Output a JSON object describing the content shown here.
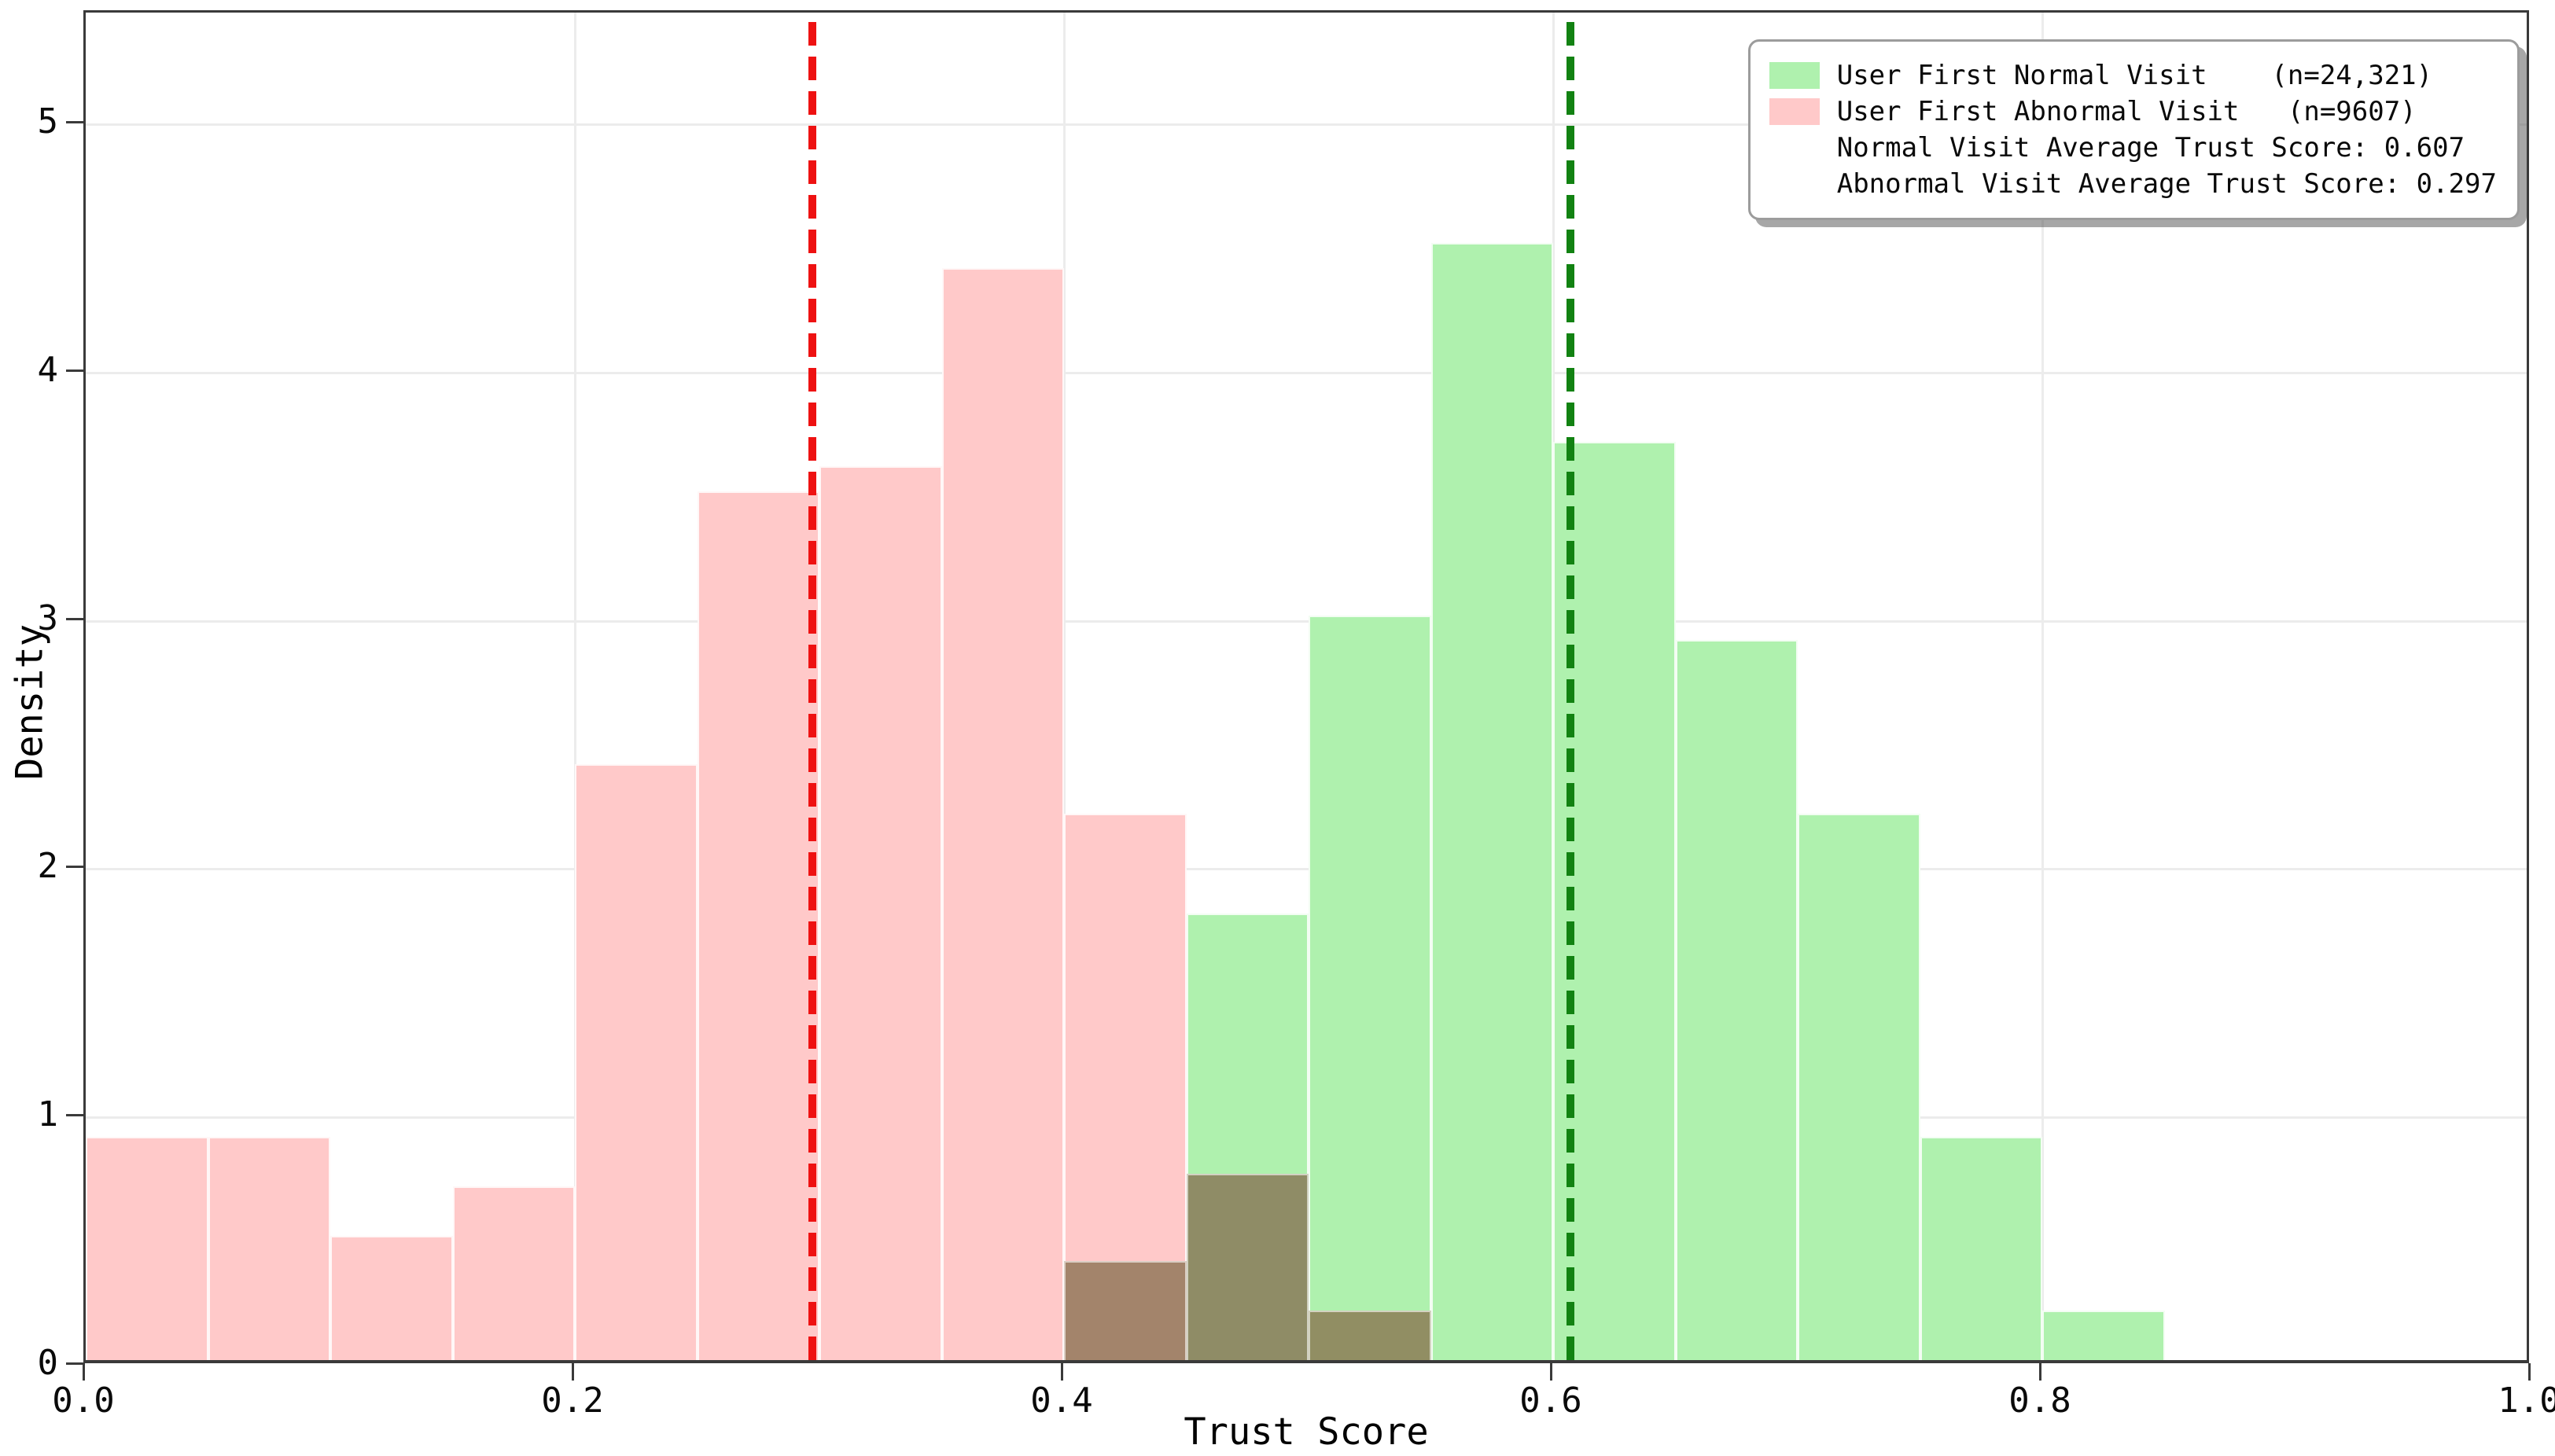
{
  "figure": {
    "xlabel": "Trust Score",
    "ylabel": "Density"
  },
  "axes": {
    "x_ticks": [
      {
        "value": 0.0,
        "label": "0.0"
      },
      {
        "value": 0.2,
        "label": "0.2"
      },
      {
        "value": 0.4,
        "label": "0.4"
      },
      {
        "value": 0.6,
        "label": "0.6"
      },
      {
        "value": 0.8,
        "label": "0.8"
      },
      {
        "value": 1.0,
        "label": "1.0"
      }
    ],
    "y_ticks": [
      {
        "value": 0,
        "label": "0"
      },
      {
        "value": 1,
        "label": "1"
      },
      {
        "value": 2,
        "label": "2"
      },
      {
        "value": 3,
        "label": "3"
      },
      {
        "value": 4,
        "label": "4"
      },
      {
        "value": 5,
        "label": "5"
      }
    ]
  },
  "legend": {
    "items": [
      {
        "type": "patch",
        "color": "#AFF1AE",
        "label": "User First Normal Visit    (n=24,321)"
      },
      {
        "type": "patch",
        "color": "#FFC9C9",
        "label": "User First Abnormal Visit   (n=9607)"
      },
      {
        "type": "dash",
        "color": "#0C830C",
        "label": "Normal Visit Average Trust Score: 0.607"
      },
      {
        "type": "dash",
        "color": "#EE1212",
        "label": "Abnormal Visit Average Trust Score: 0.297"
      }
    ]
  },
  "chart_data": {
    "type": "bar",
    "subtype": "overlapping-density-histogram",
    "title": "",
    "xlabel": "Trust Score",
    "ylabel": "Density",
    "xlim": [
      0.0,
      1.0
    ],
    "ylim": [
      0,
      5.45
    ],
    "bin_width": 0.05,
    "grid": {
      "x_gridlines": [
        0.2,
        0.4,
        0.6,
        0.8
      ],
      "y_gridlines": [
        1,
        2,
        3,
        4,
        5
      ]
    },
    "legend_position": "upper right",
    "series": [
      {
        "name": "User First Abnormal Visit",
        "n_label": "n=9607",
        "color": "#FFC9C9",
        "bin_start": 0.0,
        "bins": [
          {
            "x0": 0.0,
            "x1": 0.05,
            "density": 0.9
          },
          {
            "x0": 0.05,
            "x1": 0.1,
            "density": 0.9
          },
          {
            "x0": 0.1,
            "x1": 0.15,
            "density": 0.5
          },
          {
            "x0": 0.15,
            "x1": 0.2,
            "density": 0.7
          },
          {
            "x0": 0.2,
            "x1": 0.25,
            "density": 2.4
          },
          {
            "x0": 0.25,
            "x1": 0.3,
            "density": 3.5
          },
          {
            "x0": 0.3,
            "x1": 0.35,
            "density": 3.6
          },
          {
            "x0": 0.35,
            "x1": 0.4,
            "density": 4.4
          },
          {
            "x0": 0.4,
            "x1": 0.45,
            "density": 2.2
          },
          {
            "x0": 0.45,
            "x1": 0.5,
            "density": 0.75
          },
          {
            "x0": 0.5,
            "x1": 0.55,
            "density": 0.2
          }
        ]
      },
      {
        "name": "User First Normal Visit",
        "n_label": "n=24,321",
        "color": "#AFF1AE",
        "bin_start": 0.4,
        "bins": [
          {
            "x0": 0.4,
            "x1": 0.45,
            "density": 0.4
          },
          {
            "x0": 0.45,
            "x1": 0.5,
            "density": 1.8
          },
          {
            "x0": 0.5,
            "x1": 0.55,
            "density": 3.0
          },
          {
            "x0": 0.55,
            "x1": 0.6,
            "density": 4.5
          },
          {
            "x0": 0.6,
            "x1": 0.65,
            "density": 3.7
          },
          {
            "x0": 0.65,
            "x1": 0.7,
            "density": 2.9
          },
          {
            "x0": 0.7,
            "x1": 0.75,
            "density": 2.2
          },
          {
            "x0": 0.75,
            "x1": 0.8,
            "density": 0.9
          },
          {
            "x0": 0.8,
            "x1": 0.85,
            "density": 0.2
          }
        ]
      }
    ],
    "overlap_bins": [
      {
        "x0": 0.4,
        "x1": 0.45,
        "density": 0.4,
        "color": "#A3846B"
      },
      {
        "x0": 0.45,
        "x1": 0.5,
        "density": 0.75,
        "color": "#8F8C66"
      },
      {
        "x0": 0.5,
        "x1": 0.55,
        "density": 0.2,
        "color": "#918E63"
      }
    ],
    "vlines": [
      {
        "x": 0.607,
        "style": "dashed",
        "color": "#128212",
        "label": "Normal Visit Average Trust Score: 0.607"
      },
      {
        "x": 0.297,
        "style": "dashed",
        "color": "#EE1212",
        "label": "Abnormal Visit Average Trust Score: 0.297"
      }
    ]
  }
}
